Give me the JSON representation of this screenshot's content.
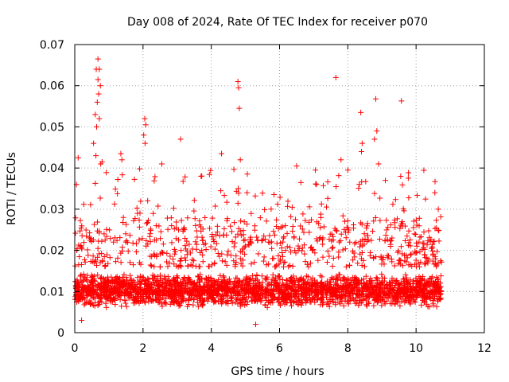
{
  "chart_data": {
    "type": "scatter",
    "title": "Day 008 of 2024, Rate Of TEC Index for receiver p070",
    "xlabel": "GPS time / hours",
    "ylabel": "ROTI / TECUs",
    "xlim": [
      0,
      12
    ],
    "ylim": [
      0,
      0.07
    ],
    "grid": true,
    "marker": "+",
    "color": "#ff0000",
    "x_ticks": [
      0,
      2,
      4,
      6,
      8,
      10,
      12
    ],
    "x_tick_labels": [
      "0",
      "2",
      "4",
      "6",
      "8",
      "10",
      "12"
    ],
    "y_ticks": [
      0,
      0.01,
      0.02,
      0.03,
      0.04,
      0.05,
      0.06,
      0.07
    ],
    "y_tick_labels": [
      "0",
      "0.01",
      "0.02",
      "0.03",
      "0.04",
      "0.05",
      "0.06",
      "0.07"
    ],
    "series": [
      {
        "name": "ROTI",
        "data_range_x": [
          0,
          10.75
        ],
        "typical_band": [
          0.005,
          0.016
        ],
        "notable_points": [
          [
            0.68,
            0.0665
          ],
          [
            0.63,
            0.064
          ],
          [
            0.72,
            0.064
          ],
          [
            0.68,
            0.0615
          ],
          [
            0.75,
            0.06
          ],
          [
            0.7,
            0.058
          ],
          [
            0.66,
            0.056
          ],
          [
            0.6,
            0.053
          ],
          [
            0.72,
            0.052
          ],
          [
            0.64,
            0.05
          ],
          [
            0.55,
            0.046
          ],
          [
            0.62,
            0.043
          ],
          [
            0.76,
            0.041
          ],
          [
            0.8,
            0.0415
          ],
          [
            0.1,
            0.0425
          ],
          [
            0.05,
            0.036
          ],
          [
            2.05,
            0.052
          ],
          [
            2.08,
            0.0505
          ],
          [
            2.02,
            0.048
          ],
          [
            2.06,
            0.046
          ],
          [
            1.35,
            0.0435
          ],
          [
            1.38,
            0.042
          ],
          [
            2.55,
            0.041
          ],
          [
            3.1,
            0.047
          ],
          [
            3.7,
            0.038
          ],
          [
            4.3,
            0.0435
          ],
          [
            4.78,
            0.061
          ],
          [
            4.8,
            0.0595
          ],
          [
            4.82,
            0.0545
          ],
          [
            4.85,
            0.042
          ],
          [
            5.05,
            0.034
          ],
          [
            6.5,
            0.0405
          ],
          [
            7.05,
            0.0395
          ],
          [
            7.65,
            0.062
          ],
          [
            7.8,
            0.042
          ],
          [
            8.0,
            0.0395
          ],
          [
            8.38,
            0.0535
          ],
          [
            8.42,
            0.046
          ],
          [
            8.4,
            0.044
          ],
          [
            8.82,
            0.0568
          ],
          [
            8.85,
            0.049
          ],
          [
            8.78,
            0.047
          ],
          [
            8.9,
            0.041
          ],
          [
            9.57,
            0.0563
          ],
          [
            9.55,
            0.038
          ],
          [
            9.1,
            0.037
          ],
          [
            10.55,
            0.034
          ],
          [
            10.65,
            0.03
          ],
          [
            0.2,
            0.003
          ],
          [
            5.3,
            0.002
          ]
        ]
      }
    ]
  }
}
